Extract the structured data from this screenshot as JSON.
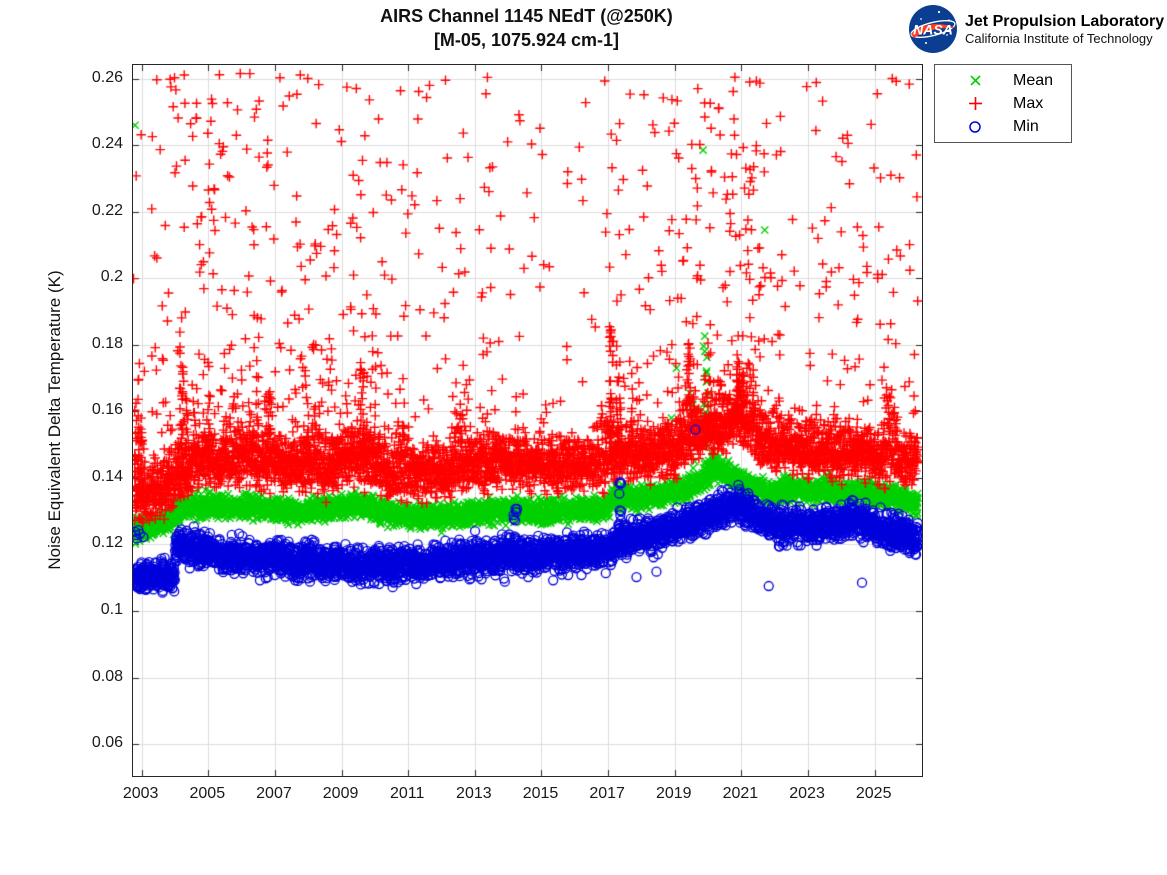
{
  "header": {
    "title_line1": "AIRS Channel 1145 NEdT (@250K)",
    "title_line2": "[M-05, 1075.924 cm-1]",
    "logo": {
      "org": "NASA",
      "name": "Jet Propulsion Laboratory",
      "sub": "California Institute of Technology",
      "meatball_blue": "#0b3d91",
      "swoosh_red": "#fc3d21"
    }
  },
  "chart_data": {
    "type": "scatter",
    "title": "AIRS Channel 1145 NEdT (@250K)",
    "subtitle": "[M-05, 1075.924 cm-1]",
    "xlabel": "",
    "ylabel": "Noise Equivalent Delta Temperature (K)",
    "xlim": [
      2002.74,
      2026.42
    ],
    "ylim": [
      0.0504,
      0.2641
    ],
    "xticks": [
      2003,
      2005,
      2007,
      2009,
      2011,
      2013,
      2015,
      2017,
      2019,
      2021,
      2023,
      2025
    ],
    "xtick_labels": [
      "2003",
      "2005",
      "2007",
      "2009",
      "2011",
      "2013",
      "2015",
      "2017",
      "2019",
      "2021",
      "2023",
      "2025"
    ],
    "yticks": [
      0.06,
      0.08,
      0.1,
      0.12,
      0.14,
      0.16,
      0.18,
      0.2,
      0.22,
      0.24,
      0.26
    ],
    "ytick_labels": [
      "0.06",
      "0.08",
      "0.1",
      "0.12",
      "0.14",
      "0.16",
      "0.18",
      "0.2",
      "0.22",
      "0.24",
      "0.26"
    ],
    "grid": true,
    "grid_color": "#dcdcdc",
    "axis_color": "#262626",
    "background": "#ffffff",
    "legend": {
      "position": "outside-top-right",
      "entries": [
        "Mean",
        "Max",
        "Min"
      ]
    },
    "data_range": [
      2002.78,
      2026.3
    ],
    "render_seed": 20020901,
    "series": [
      {
        "name": "Mean",
        "marker": "x",
        "color": "#00d000",
        "count": 4500,
        "halfwidth": 0.002,
        "band": [
          [
            2002.78,
            0.124
          ],
          [
            2003.3,
            0.1255
          ],
          [
            2003.9,
            0.1268
          ],
          [
            2004.15,
            0.1303
          ],
          [
            2004.6,
            0.1315
          ],
          [
            2006.0,
            0.1315
          ],
          [
            2007.0,
            0.1305
          ],
          [
            2008.0,
            0.13
          ],
          [
            2009.3,
            0.1318
          ],
          [
            2009.8,
            0.1313
          ],
          [
            2010.5,
            0.1288
          ],
          [
            2011.5,
            0.1282
          ],
          [
            2012.5,
            0.1285
          ],
          [
            2013.2,
            0.1297
          ],
          [
            2014.0,
            0.1302
          ],
          [
            2015.0,
            0.1297
          ],
          [
            2016.0,
            0.1307
          ],
          [
            2016.95,
            0.1307
          ],
          [
            2017.15,
            0.134
          ],
          [
            2018.0,
            0.1342
          ],
          [
            2018.8,
            0.1352
          ],
          [
            2019.4,
            0.1365
          ],
          [
            2019.9,
            0.1405
          ],
          [
            2020.2,
            0.143
          ],
          [
            2020.6,
            0.1412
          ],
          [
            2021.0,
            0.1388
          ],
          [
            2021.5,
            0.1368
          ],
          [
            2022.0,
            0.1355
          ],
          [
            2022.6,
            0.1372
          ],
          [
            2023.1,
            0.1355
          ],
          [
            2023.6,
            0.1368
          ],
          [
            2024.1,
            0.1352
          ],
          [
            2024.6,
            0.1362
          ],
          [
            2025.1,
            0.1342
          ],
          [
            2025.6,
            0.1338
          ],
          [
            2026.3,
            0.1322
          ]
        ],
        "up_tail": {
          "p": 0.04,
          "max": 0.003
        },
        "columns": [
          [
            2019.92,
            0.187,
            18
          ],
          [
            2019.55,
            0.169,
            8
          ],
          [
            2020.1,
            0.159,
            8
          ]
        ],
        "outliers": [
          [
            2002.8,
            0.246
          ],
          [
            2019.85,
            0.2385
          ],
          [
            2021.7,
            0.2145
          ],
          [
            2019.05,
            0.173
          ],
          [
            2019.45,
            0.1655
          ],
          [
            2019.9,
            0.178
          ],
          [
            2019.95,
            0.1715
          ],
          [
            2020.0,
            0.1655
          ],
          [
            2018.9,
            0.158
          ],
          [
            2017.3,
            0.1505
          ]
        ]
      },
      {
        "name": "Max",
        "marker": "plus",
        "color": "#ff0000",
        "count": 4500,
        "halfwidth": 0.004,
        "band": [
          [
            2002.78,
            0.1355
          ],
          [
            2003.1,
            0.1345
          ],
          [
            2003.5,
            0.1348
          ],
          [
            2003.9,
            0.1365
          ],
          [
            2004.15,
            0.1398
          ],
          [
            2004.6,
            0.1442
          ],
          [
            2005.1,
            0.1452
          ],
          [
            2005.6,
            0.1438
          ],
          [
            2006.1,
            0.1458
          ],
          [
            2006.6,
            0.1442
          ],
          [
            2007.1,
            0.1452
          ],
          [
            2007.6,
            0.1428
          ],
          [
            2008.1,
            0.1442
          ],
          [
            2008.6,
            0.1418
          ],
          [
            2009.1,
            0.1445
          ],
          [
            2009.6,
            0.1458
          ],
          [
            2010.1,
            0.1418
          ],
          [
            2010.6,
            0.1398
          ],
          [
            2011.1,
            0.1412
          ],
          [
            2011.6,
            0.1398
          ],
          [
            2012.1,
            0.1412
          ],
          [
            2012.6,
            0.1422
          ],
          [
            2013.1,
            0.1432
          ],
          [
            2013.6,
            0.1442
          ],
          [
            2014.1,
            0.1438
          ],
          [
            2014.6,
            0.1432
          ],
          [
            2015.1,
            0.1422
          ],
          [
            2015.6,
            0.1428
          ],
          [
            2016.1,
            0.1438
          ],
          [
            2016.6,
            0.1432
          ],
          [
            2017.2,
            0.1458
          ],
          [
            2017.7,
            0.1472
          ],
          [
            2018.2,
            0.1458
          ],
          [
            2018.7,
            0.1472
          ],
          [
            2019.2,
            0.1492
          ],
          [
            2019.6,
            0.1518
          ],
          [
            2020.0,
            0.1548
          ],
          [
            2020.4,
            0.1538
          ],
          [
            2020.9,
            0.1572
          ],
          [
            2021.15,
            0.1552
          ],
          [
            2021.6,
            0.1502
          ],
          [
            2022.0,
            0.1482
          ],
          [
            2022.5,
            0.1498
          ],
          [
            2023.0,
            0.1468
          ],
          [
            2023.5,
            0.1482
          ],
          [
            2024.0,
            0.1462
          ],
          [
            2024.5,
            0.1478
          ],
          [
            2025.0,
            0.1452
          ],
          [
            2025.5,
            0.1458
          ],
          [
            2026.3,
            0.1442
          ]
        ],
        "up_tail": {
          "p": 0.45,
          "max": 0.02
        },
        "down_tail": {
          "p": 0.03,
          "max": 0.003
        },
        "columns": [
          [
            2002.85,
            0.171,
            22
          ],
          [
            2002.95,
            0.158,
            16
          ],
          [
            2004.2,
            0.176,
            26
          ],
          [
            2004.35,
            0.168,
            16
          ],
          [
            2005.0,
            0.166,
            12
          ],
          [
            2006.85,
            0.169,
            14
          ],
          [
            2007.95,
            0.171,
            14
          ],
          [
            2009.62,
            0.174,
            18
          ],
          [
            2012.55,
            0.163,
            10
          ],
          [
            2013.6,
            0.165,
            10
          ],
          [
            2017.1,
            0.189,
            30
          ],
          [
            2017.3,
            0.181,
            22
          ],
          [
            2019.42,
            0.184,
            22
          ],
          [
            2020.9,
            0.177,
            20
          ],
          [
            2021.05,
            0.172,
            16
          ]
        ],
        "cloud": {
          "count": 820,
          "pow": 2.6,
          "off": 0.0075,
          "eras": [
            [
              2002.74,
              2003.4,
              1.2
            ],
            [
              2003.4,
              2010.2,
              1.6
            ],
            [
              2010.2,
              2013.6,
              1.1
            ],
            [
              2013.6,
              2016.85,
              0.55
            ],
            [
              2016.85,
              2018.8,
              0.85
            ],
            [
              2018.8,
              2022.0,
              1.5
            ],
            [
              2022.0,
              2026.3,
              0.8
            ]
          ]
        },
        "top_cloud": {
          "count": 140,
          "range": [
            0.195,
            0.262
          ]
        },
        "outliers": []
      },
      {
        "name": "Min",
        "marker": "circle",
        "color": "#0000dd",
        "count": 4500,
        "halfwidth": 0.0028,
        "band": [
          [
            2002.78,
            0.1102
          ],
          [
            2003.5,
            0.1108
          ],
          [
            2003.98,
            0.1105
          ],
          [
            2004.02,
            0.1192
          ],
          [
            2004.6,
            0.1192
          ],
          [
            2005.1,
            0.1172
          ],
          [
            2005.6,
            0.1158
          ],
          [
            2006.1,
            0.1168
          ],
          [
            2006.7,
            0.1158
          ],
          [
            2007.2,
            0.1162
          ],
          [
            2007.6,
            0.1142
          ],
          [
            2008.1,
            0.1155
          ],
          [
            2008.6,
            0.1138
          ],
          [
            2009.1,
            0.1152
          ],
          [
            2009.6,
            0.1128
          ],
          [
            2010.1,
            0.1145
          ],
          [
            2010.6,
            0.1132
          ],
          [
            2011.1,
            0.1148
          ],
          [
            2011.6,
            0.1138
          ],
          [
            2012.1,
            0.1152
          ],
          [
            2012.8,
            0.1158
          ],
          [
            2013.5,
            0.1162
          ],
          [
            2014.2,
            0.1172
          ],
          [
            2015.0,
            0.1168
          ],
          [
            2016.0,
            0.1178
          ],
          [
            2016.95,
            0.1178
          ],
          [
            2017.25,
            0.1208
          ],
          [
            2018.0,
            0.1225
          ],
          [
            2018.7,
            0.1242
          ],
          [
            2019.3,
            0.1262
          ],
          [
            2019.9,
            0.1285
          ],
          [
            2020.4,
            0.1308
          ],
          [
            2020.85,
            0.1322
          ],
          [
            2021.1,
            0.1302
          ],
          [
            2021.45,
            0.1285
          ],
          [
            2021.9,
            0.1262
          ],
          [
            2022.3,
            0.1252
          ],
          [
            2022.7,
            0.1268
          ],
          [
            2023.1,
            0.1242
          ],
          [
            2023.5,
            0.1268
          ],
          [
            2023.9,
            0.1258
          ],
          [
            2024.35,
            0.1282
          ],
          [
            2024.8,
            0.1262
          ],
          [
            2025.2,
            0.1242
          ],
          [
            2025.7,
            0.1238
          ],
          [
            2026.3,
            0.1212
          ]
        ],
        "low_tail": {
          "p": 0.015,
          "max": 0.005
        },
        "columns": [
          [
            2014.22,
            0.1315,
            10
          ],
          [
            2017.35,
            0.1388,
            12
          ],
          [
            2013.05,
            0.128,
            6
          ]
        ],
        "outliers": [
          [
            2019.62,
            0.1545
          ],
          [
            2021.82,
            0.1075
          ],
          [
            2024.62,
            0.1085
          ],
          [
            2002.8,
            0.1238
          ],
          [
            2002.83,
            0.1228
          ],
          [
            2002.86,
            0.1218
          ],
          [
            2002.9,
            0.1243
          ],
          [
            2002.95,
            0.1232
          ],
          [
            2003.05,
            0.1222
          ],
          [
            2013.9,
            0.1088
          ],
          [
            2014.6,
            0.1102
          ],
          [
            2015.35,
            0.1092
          ],
          [
            2016.2,
            0.1108
          ],
          [
            2017.85,
            0.1102
          ],
          [
            2018.45,
            0.1118
          ],
          [
            2010.35,
            0.109
          ],
          [
            2008.05,
            0.1088
          ],
          [
            2007.8,
            0.1098
          ],
          [
            2006.55,
            0.1092
          ],
          [
            2012.35,
            0.1102
          ],
          [
            2015.8,
            0.1108
          ],
          [
            2013.2,
            0.1095
          ]
        ]
      }
    ]
  }
}
